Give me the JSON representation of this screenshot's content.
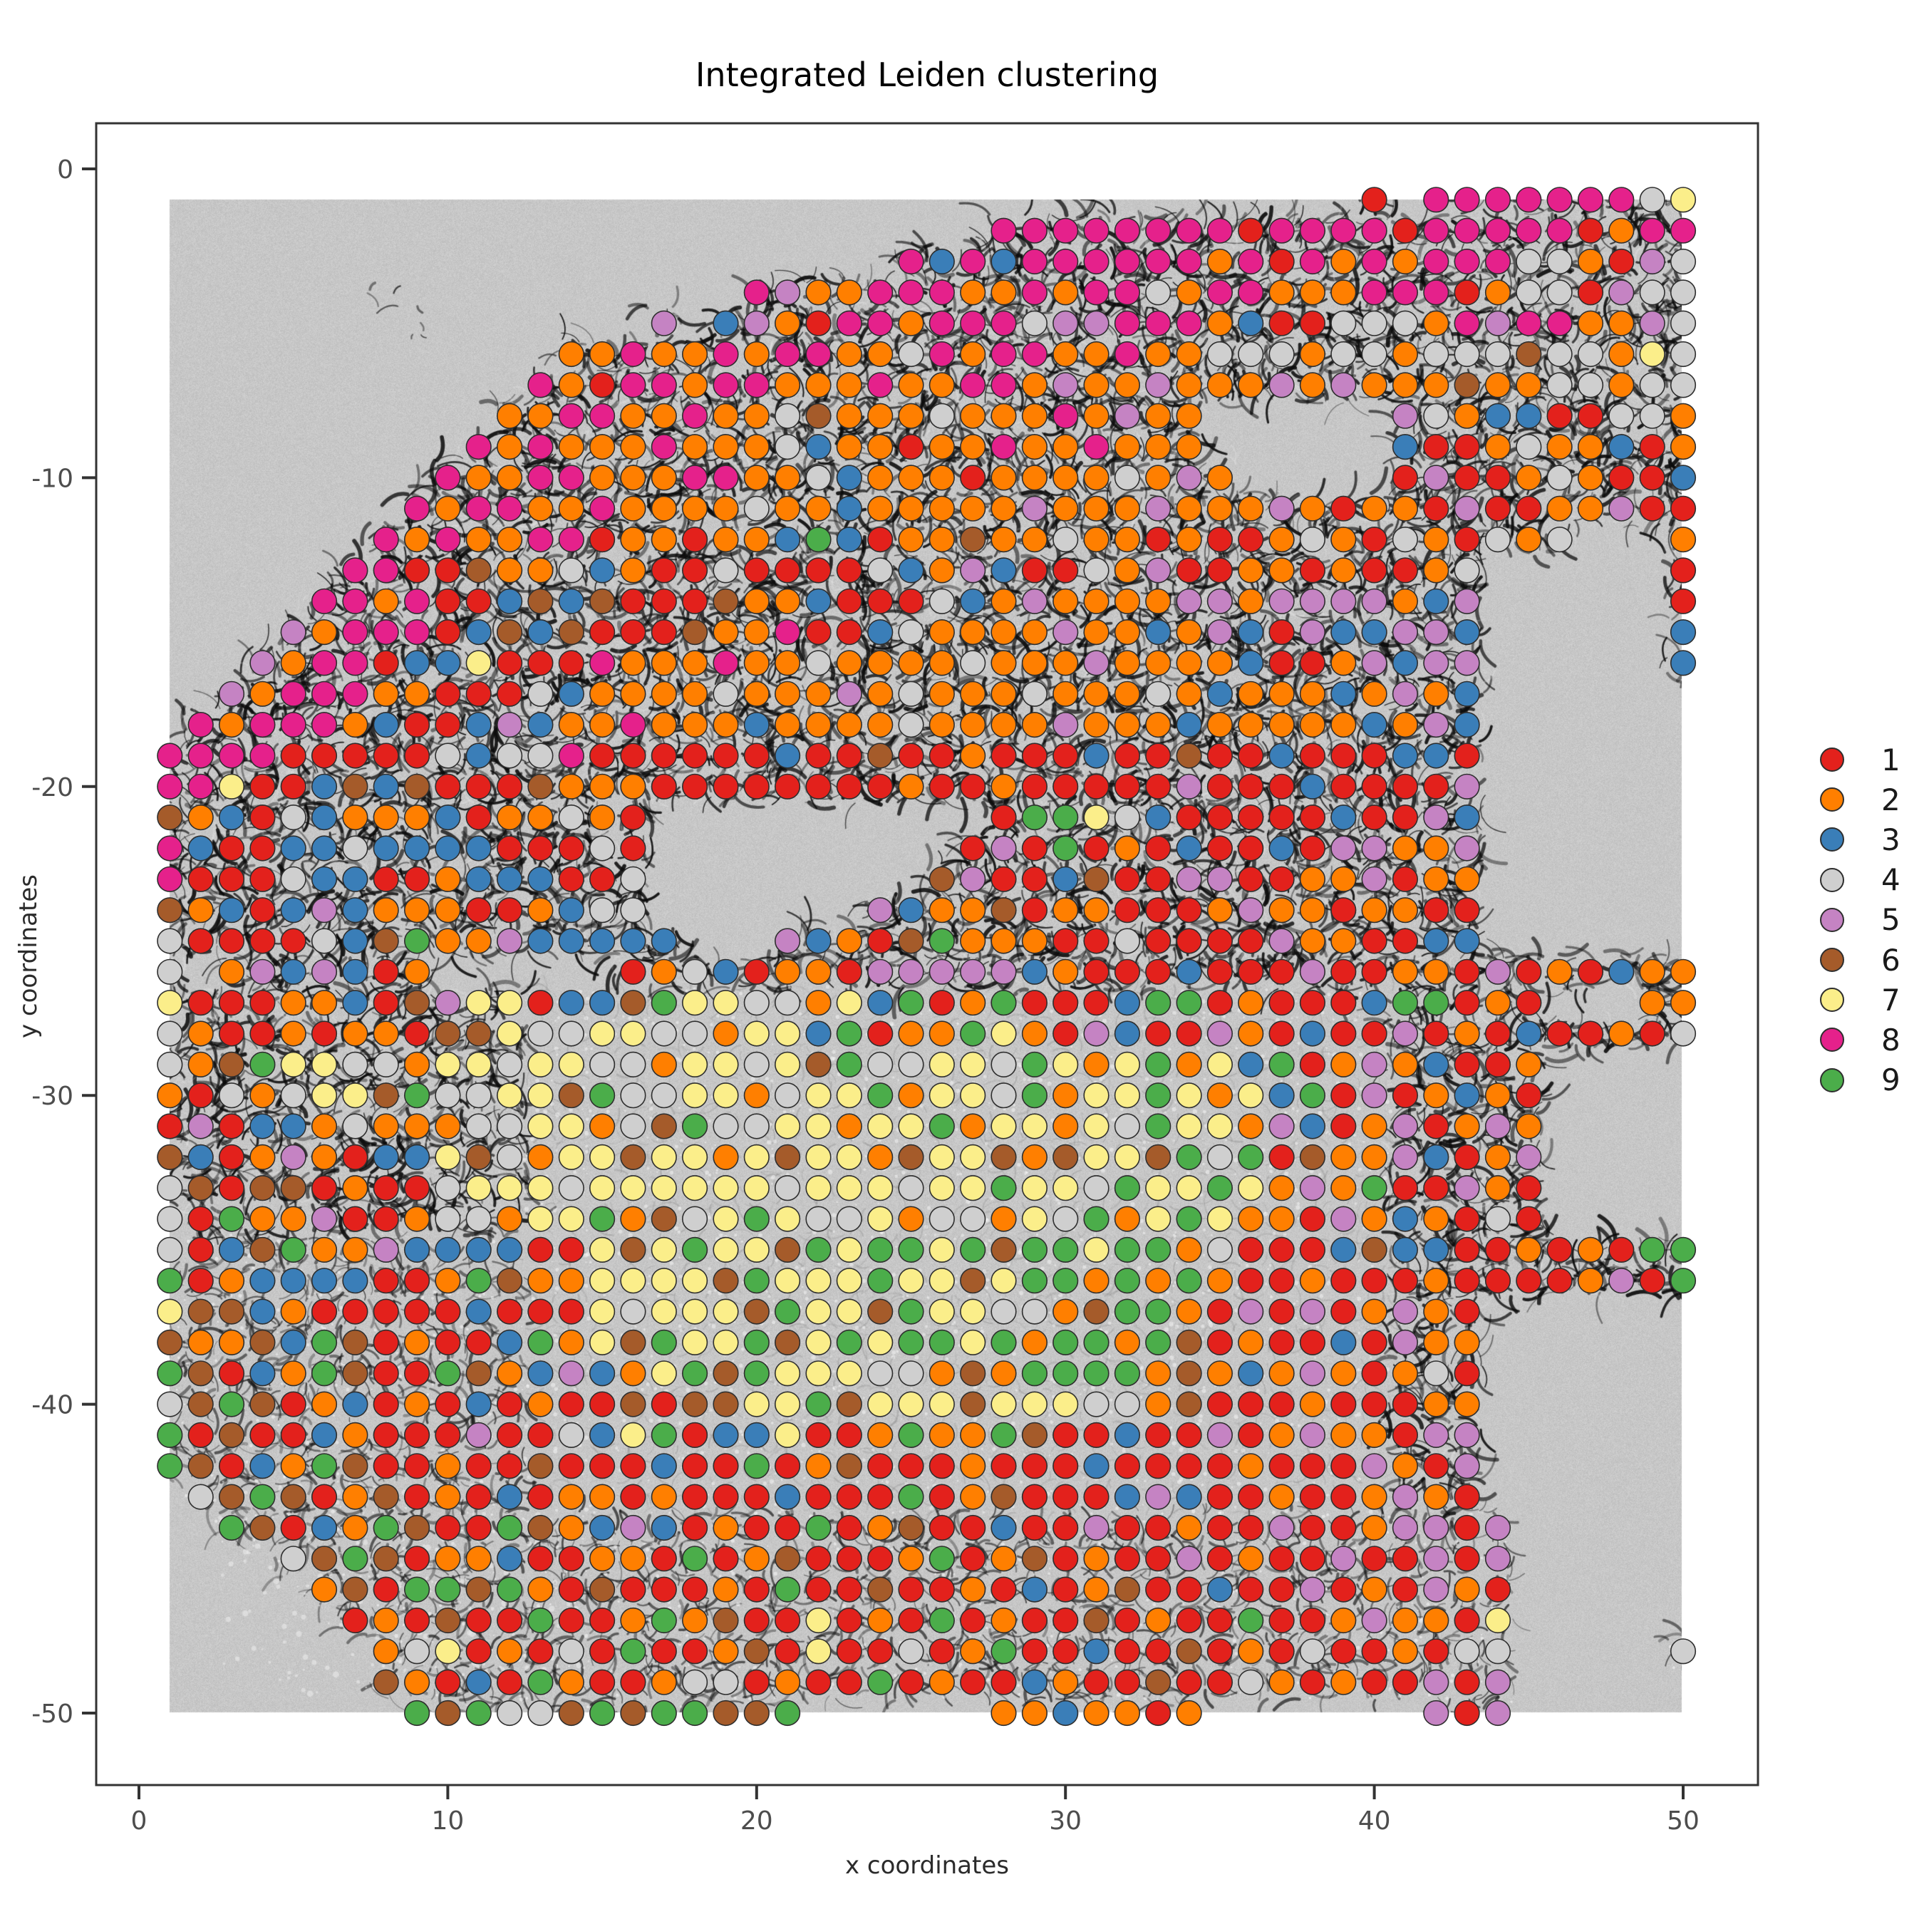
{
  "title": "Integrated Leiden clustering",
  "axes": {
    "x_label": "x coordinates",
    "y_label": "y coordinates",
    "x_ticks": [
      0,
      10,
      20,
      30,
      40,
      50
    ],
    "y_ticks": [
      0,
      -10,
      -20,
      -30,
      -40,
      -50
    ],
    "x_range": [
      -1.4,
      52.4
    ],
    "y_range": [
      -52.3,
      1.5
    ]
  },
  "legend": {
    "items": [
      {
        "label": "1",
        "color": "#E3211C"
      },
      {
        "label": "2",
        "color": "#FF7F00"
      },
      {
        "label": "3",
        "color": "#3A7EB8"
      },
      {
        "label": "4",
        "color": "#CFCFCF"
      },
      {
        "label": "5",
        "color": "#C583C3"
      },
      {
        "label": "6",
        "color": "#A55B2A"
      },
      {
        "label": "7",
        "color": "#FBEE8A"
      },
      {
        "label": "8",
        "color": "#E5218B"
      },
      {
        "label": "9",
        "color": "#4BAD4A"
      }
    ]
  },
  "chart_data": {
    "type": "scatter",
    "title": "Integrated Leiden clustering",
    "xlabel": "x coordinates",
    "ylabel": "y coordinates",
    "grid": false,
    "legend_position": "right",
    "background": "grayscale tissue microscopy image spanning x 1-50, y -1 to -50; dark fibrous web in upper half and margins, pale fine-textured core in center, smooth empty gray in upper-left, lower-left and right regions",
    "point_radius_px": 17.3,
    "point_stroke": "#2e2e2e",
    "clusters": [
      "1",
      "2",
      "3",
      "4",
      "5",
      "6",
      "7",
      "8",
      "9"
    ],
    "palette": {
      "1": "#E3211C",
      "2": "#FF7F00",
      "3": "#3A7EB8",
      "4": "#CFCFCF",
      "5": "#C583C3",
      "6": "#A55B2A",
      "7": "#FBEE8A",
      "8": "#E5218B",
      "9": "#4BAD4A"
    },
    "rows": [
      {
        "y": -1,
        "runs": "40:1,42-48:8,49:4,50:7"
      },
      {
        "y": -2,
        "runs": "28-35:8,36:1,37-40:8,41:1,42-46:8,47:1,48:2,49-50:8"
      },
      {
        "y": -3,
        "runs": "25:8,26:3,27:8,28:3,29-34:8,35:2,36:8,37:1,38:8,39:2,40:8,41:2,42-44:8,45-46:4,47:2,48:1,49:5,50:4"
      },
      {
        "y": -4,
        "runs": "20:8,21:5,22-23:2,24-26:8,27-28:2,29:8,30:2,31-32:8,33:4,34:2,35-36:8,37-39:2,40-42:8,43:1,44:2,45-46:4,47:1,48:5,49-50:4"
      },
      {
        "y": -5,
        "runs": "17:5,19:3,20:5,21:2,22:1,23-24:8,25:2,26-28:8,29:4,30-31:5,32-34:8,35:2,36:3,37-38:1,39-41:4,42:2,43:8,44:5,45-46:8,47-48:2,49:5,50:4"
      },
      {
        "y": -6,
        "runs": "14-15:2,16:8,17-18:2,19:8,20:2,21-22:8,23-24:2,25:4,26:8,27:2,28-29:8,30-31:2,32:8,33-34:2,35-37:4,38:2,39-40:4,41:2,42-44:4,45:6,46-47:4,48:2,49:7,50:4"
      },
      {
        "y": -7,
        "runs": "13:8,14:2,15:1,16-17:8,18:2,19-20:8,21-23:2,24:8,25-26:2,27-28:8,29:2,30:5,31-32:2,33:5,34-36:2,37:5,38:2,39:5,40-42:2,43:6,44-45:2,46-47:4,48:2,49-50:4"
      },
      {
        "y": -8,
        "runs": "12-13:2,14-15:8,16-17:2,18:8,19-20:2,21:4,22:6,23-25:2,26:4,27-29:2,30:8,31:2,32:5,33-34:2,41:5,42:4,43:2,44-45:3,46-47:1,48-49:4,50:2"
      },
      {
        "y": -9,
        "runs": "11:8,12:2,13:8,14-16:2,17:8,18-20:2,21:4,22:3,23-24:2,25:1,26-27:2,28:8,29-30:2,31:8,32-34:2,41:3,42-43:1,44:2,45:4,46-47:2,48:3,49:1,50:2"
      },
      {
        "y": -10,
        "runs": "10:8,11-12:2,13-14:8,15-17:2,18-19:8,20-21:2,22:4,23:3,24-26:2,27:1,28-31:2,32:4,33:2,34:5,35:2,41:1,42:5,43-44:1,45:2,46:4,47:2,48-49:1,50:3"
      },
      {
        "y": -11,
        "runs": "9:8,10:2,11-12:8,13-14:2,15:8,16-19:2,20:4,21-22:2,23:3,24-28:2,29:5,30-32:2,33:5,34-36:2,37:5,38:2,39:1,40-41:2,42:1,43:5,44-45:1,46-47:2,48:5,49-50:1"
      },
      {
        "y": -12,
        "runs": "8:8,9:2,10:8,11-12:2,13-14:8,15:1,16-17:2,18:1,19-20:2,21:3,22:9,23:3,24:1,25-26:2,27:6,28-29:2,30:4,31-32:2,33:1,34:2,35-36:1,37:2,38:4,39:2,40:1,41:4,42:2,43:1,44:4,45:2,46:4,50:2"
      },
      {
        "y": -13,
        "runs": "7-8:8,9-10:1,11:6,12-13:2,14:4,15:3,16:2,17-18:1,19:4,20-23:1,24:4,25:3,26:2,27:5,28:3,29-30:1,31:4,32:2,33:5,34-35:1,36-37:2,38:1,39:2,40-41:1,42:2,43:4,50:1"
      },
      {
        "y": -14,
        "runs": "6-7:8,8:2,9:8,10-11:1,12:3,13:6,14:3,15:6,16-18:1,19:6,20-21:2,22:3,23-25:1,26:4,27:3,28:2,29:5,30-33:2,34-35:5,36:2,37-40:5,41:2,42:3,43:5,50:1"
      },
      {
        "y": -15,
        "runs": "5:5,6:2,7-9:8,10:1,11:3,12:6,13:3,14:6,15-17:1,18:6,19-20:2,21:8,22-23:1,24:3,25:4,26-29:2,30:5,31-32:2,33:3,34:2,35:5,36:3,37:1,38:5,39-40:3,41-42:5,43:3,50:3"
      },
      {
        "y": -16,
        "runs": "4:5,5:2,6-7:8,8:1,9-10:3,11:7,12-14:1,15:8,16-18:2,19:8,20-21:2,22:4,23-26:2,27:4,28-30:2,31:5,32-33:2,34-35:2,36:3,37-38:1,39:2,40:5,41:3,42-43:5,50:3"
      },
      {
        "y": -17,
        "runs": "3:5,4:2,5-7:8,8-9:2,10-12:1,13:4,14:3,15-18:2,19:4,20-22:2,23:5,24:2,25:4,26:2,27-28:2,29:4,30-32:2,33:4,34:2,35:3,36-38:2,39:3,40:2,41:5,42:2,43:3"
      },
      {
        "y": -18,
        "runs": "2:8,3:2,4-6:8,7:2,8:3,9-10:1,11:3,12:5,13:3,14-15:2,16:8,17-19:2,20:3,21-24:2,25:4,26-28:2,29:2,30:5,31-33:2,34:3,35-39:2,40:3,41:2,42:5,43:3"
      },
      {
        "y": -19,
        "runs": "1-4:8,5-9:1,10:4,11:3,12-13:4,14:8,15-20:1,21:3,22-23:1,24:6,25-26:1,27:2,28-30:1,31:3,32-33:1,34:6,35-36:1,37:3,38-40:1,41-42:3,43:1"
      },
      {
        "y": -20,
        "runs": "1-2:8,3:7,4-5:1,6:3,7:6,8:3,9:6,10-12:1,13:6,14-16:2,17-24:1,25:2,26-27:1,28:2,29-33:1,34:5,35-37:1,38:3,39-41:1,42:1,43:5"
      },
      {
        "y": -21,
        "runs": "1:6,2:2,3:3,4:1,5:4,6:3,7-9:2,10:3,11:1,12-13:2,14:4,15:2,16:1,28:1,29-30:9,31:7,32:4,33:3,34-38:1,39:3,40-41:1,42:5,43:3"
      },
      {
        "y": -22,
        "runs": "1:8,2:3,3-4:1,5-6:3,7:4,8-11:3,12-14:1,15:4,16:1,27:1,28:5,29:1,30:9,31:1,32:2,33:1,34:3,35-36:1,37:3,38:1,39-40:5,41-42:2,43:5"
      },
      {
        "y": -23,
        "runs": "1:8,2-4:1,5:4,6-7:3,8-9:1,10:2,11-13:3,14-15:1,16:4,26:6,27:5,28-29:1,30:3,31:6,32-33:1,34-35:5,36-37:1,38-39:2,40:5,41:1,42-43:2"
      },
      {
        "y": -24,
        "runs": "1:6,2:2,3:3,4:1,5:3,6:5,7:3,8-10:2,11-12:1,13:2,14:3,15-16:4,24:5,25:3,26-27:2,28:6,29:1,30-31:2,32-33:1,34:1,35:2,36:5,37-38:2,39:1,40-41:2,42-43:1"
      },
      {
        "y": -25,
        "runs": "1:4,2-5:1,6:4,7:3,8:6,9:9,10-11:2,12:5,13-17:3,21:5,22:3,23:2,24:1,25:6,26:9,27-29:2,30-31:1,32:4,33-36:1,37:5,38-39:2,40-41:1,42-43:3"
      },
      {
        "y": -26,
        "runs": "1:4,3:2,4:5,5:3,6:5,7:3,8:1,9:2,16:1,17:2,18:4,19:3,20:1,21-22:2,23:1,24-28:5,29:3,30:2,31-33:1,34:3,35-37:1,38:5,39-40:1,41-42:2,43:1,44:5,45:1,46:2,47:1,48:3,49-50:2"
      },
      {
        "y": -27,
        "runs": "1:7,2-4:1,5-6:2,7:3,8:1,9:6,10:5,11-12:7,13:1,14-15:3,16:6,17:9,18-19:7,20-21:4,22:2,23:7,24:3,25:9,26:1,27:2,28:9,29-31:1,32:3,33-34:9,35:1,36:2,37-39:1,40:3,41-42:9,43:1,44:2,45:1,49-50:2"
      },
      {
        "y": -28,
        "runs": "1:4,2:2,3-4:1,5:2,6:1,7-8:2,9:1,10-11:6,12:7,13-14:4,15-16:7,17-18:4,19:2,20-21:7,22:3,23:9,24:1,25-26:2,27:9,28:7,29:2,30:1,31:5,32:3,33-34:1,35:5,36:2,37:1,38:3,39-40:1,41:5,42:1,43:2,44:1,45:3,46-47:1,48:2,49:1,50:4"
      },
      {
        "y": -29,
        "runs": "1:4,2:2,3:6,4:9,5-6:7,7-8:4,9:2,10-11:7,12:4,13-14:7,15-16:4,17:2,18-19:7,20:4,21:7,22:6,23:9,24-25:4,26-27:7,28:4,29:9,30:7,31:2,32:7,33:9,34:2,35:7,36:3,37:9,38:1,39:2,40:5,41:2,42:3,43:1,44:1,45:2"
      },
      {
        "y": -30,
        "runs": "1:2,2:1,3:4,4:2,5:4,6-7:7,8:6,9:9,10-11:4,12-13:7,14:6,15:9,16-17:4,18-19:7,20:2,21:4,22-23:7,24:9,25:2,26-27:7,28:4,29:9,30:2,31-32:7,33:9,34:7,35:2,36:7,37:3,38:9,39:1,40:5,41:1,42:2,43:3,44:2,45:1"
      },
      {
        "y": -31,
        "runs": "1:1,2:5,3:1,4:3,5:3,6:2,7:4,8-10:2,11-12:4,13-14:7,15:2,16:4,17:6,18:9,19-20:4,21-22:7,23:2,24-25:7,26:9,27:2,28-29:7,30:2,31:7,32:4,33:9,34-35:7,36:2,37:5,38:3,39:1,40:2,41:5,42:1,43:2,44:5,45:2"
      },
      {
        "y": -32,
        "runs": "1:6,2:3,3:1,4:2,5:5,6:2,7:1,8-9:3,10:7,11:6,12:4,13:2,14-15:7,16:6,17-18:7,19:2,20:7,21:6,22-23:7,24:2,25:6,26-27:7,28:6,29:2,30:6,31-32:7,33:6,34:9,35:4,36:9,37:1,38:6,39-40:2,41:5,42:3,43:1,44:2,45:5"
      },
      {
        "y": -33,
        "runs": "1:4,2:6,3:1,4-5:6,6:1,7:2,8-9:1,10:4,11-13:7,14:4,15-20:7,21:4,22-24:7,25:4,26-27:7,28:9,29-30:7,31:4,32:9,33-34:7,35:9,36:7,37:2,38:5,39:2,40:9,41-42:1,43:5,44:2,45:1"
      },
      {
        "y": -34,
        "runs": "1:4,2:1,3:9,4-5:2,6:5,7-8:1,9:2,10-11:4,12:2,13-14:7,15:9,16:2,17:6,18:4,19:7,20:9,21:7,22-23:4,24:7,25:2,26-27:4,28:2,29:7,30:4,31:9,32:2,33:7,34:9,35:7,36-37:2,38:1,39:5,40:2,41:3,42:2,43:1,44:4,45:1"
      },
      {
        "y": -35,
        "runs": "1:4,2:1,3:3,4:6,5:9,6-7:2,8:5,9-12:3,13-14:1,15:7,16:6,17:7,18:9,19-20:7,21:6,22:9,23:7,24-25:9,26:7,27:9,28:6,29-30:9,31:7,32-33:9,34:2,35:4,36-38:1,39:3,40:6,41-42:3,43:1,44:1,45:2,46:1,47:2,48:1,49-50:9"
      },
      {
        "y": -36,
        "runs": "1:9,2:1,3:2,4-7:3,8-9:1,10:2,11:9,12:6,13-14:2,15-18:7,19:6,20:9,21-23:7,24:9,25-26:7,27:6,28:7,29-30:9,31:2,32:9,33:2,34:9,35:2,36-37:1,38:2,39-41:1,42:2,43-46:1,47:2,48:5,49:1,50:9"
      },
      {
        "y": -37,
        "runs": "1:7,2-3:6,4:3,5:2,6-10:1,11:3,12-14:1,15:7,16:4,17-19:7,20:6,21:9,22-23:7,24:6,25:9,26-27:7,28-29:4,30:2,31:6,32-33:9,34:2,35:1,36:5,37:1,38:5,39:1,40:2,41:5,42:2,43:1"
      },
      {
        "y": -38,
        "runs": "1:6,2-3:2,4:6,5:3,6:9,7:6,8:1,9:2,10-11:1,12:3,13:9,14:2,15:7,16:6,17:9,18-19:7,20:9,21:6,22:7,23:9,24:7,25-26:9,27:7,28:9,29:2,30-31:9,32:2,33:9,34:6,35:1,36:2,37-38:1,39:3,40:1,41:5,42-43:2"
      },
      {
        "y": -39,
        "runs": "1:9,2:6,3:1,4:3,5:2,6:9,7:6,8-9:1,10:9,11:6,12:2,13:3,14:5,15:3,16:2,17:7,18:9,19:6,20:9,21-23:7,24-25:4,26:2,27:6,28:2,29-32:9,33:2,34:6,35:2,36:3,37:2,38:5,39:2,40:1,41:2,42:4,43:1"
      },
      {
        "y": -40,
        "runs": "1:4,2:6,3:9,4:6,5:1,6:2,7:3,8:1,9:2,10:1,11:3,12:1,13:2,14-15:1,16:6,17:1,18-19:6,20-21:7,22:9,23:6,24-26:7,27:6,28-30:7,31-32:4,33:2,34:6,35-37:1,38:2,39-41:1,42-43:2"
      },
      {
        "y": -41,
        "runs": "1:9,2:1,3:6,4-5:1,6:3,7:2,8-10:1,11:5,12-13:1,14:4,15:3,16:7,17:9,18:1,19-20:3,21:7,22-23:1,24:2,25:9,26-27:2,28:9,29:6,30-31:1,32:3,33-34:1,35:5,36:1,37:2,38:5,39-40:2,41:1,42-43:5"
      },
      {
        "y": -42,
        "runs": "1:9,2:6,3:1,4:3,5:2,6:9,7:6,8-9:1,10:2,11-12:1,13:6,14-16:1,17:3,18-19:1,20:9,21:1,22:2,23:6,24-26:1,27:2,28-30:1,31:3,32-35:1,36:2,37-39:1,40:5,41:2,42:1,43:5"
      },
      {
        "y": -43,
        "runs": "2:4,3:6,4:9,5:6,6:1,7:2,8:6,9:1,10:2,11:1,12:3,13:1,14-15:2,16:1,17:2,18-20:1,21:3,22-24:1,25:9,26:1,27:2,28:6,29-31:1,32:3,33:5,34:3,35-36:1,37:2,38-39:1,40:2,41:5,42:2,43:1"
      },
      {
        "y": -44,
        "runs": "3:9,4:6,5:1,6:3,7:2,8:9,9:6,10-11:1,12:9,13:6,14:2,15:3,16:5,17:3,18:1,19:2,20-21:1,22:9,23:1,24:2,25:6,26-27:1,28:3,29-30:1,31:5,32-33:1,34:2,35-36:1,37:5,38-39:1,40:2,41-42:5,43:1,44:5"
      },
      {
        "y": -45,
        "runs": "5:4,6:6,7:9,8:6,9:1,10-11:2,12:3,13-14:1,15-16:2,17:1,18:9,19:1,20:2,21:6,22-24:1,25:2,26:9,27:1,28:2,29:6,30:1,31:2,32-33:1,34:5,35:1,36:2,37-38:1,39:5,40-41:1,42:5,43:1,44:5"
      },
      {
        "y": -46,
        "runs": "6:2,7:6,8:1,9-10:9,11:6,12:9,13:2,14:1,15:6,16-18:1,19:2,20:1,21:9,22-23:1,24:6,25-26:1,27:2,28:1,29:3,30:1,31:2,32:6,33-34:1,35:3,36-37:1,38:5,39:1,40:2,41:1,42:5,43:2,44:1"
      },
      {
        "y": -47,
        "runs": "7:1,8:2,9:1,10:6,11-12:1,13:9,14-15:1,16:2,17:9,18:2,19:6,20-21:1,22:7,23:1,24:2,25:1,26:9,27:1,28:2,29-30:1,31:6,32:1,33:2,34-35:1,36:9,37-38:1,39:2,40:5,41-42:2,43:1,44:7"
      },
      {
        "y": -48,
        "runs": "8:2,9:4,10:7,11:1,12:2,13:1,14:4,15:1,16:9,17-18:1,19:2,20:6,21:1,22:7,23-24:1,25:4,26:1,27:2,28:9,29-30:1,31:3,32-33:1,34:6,35:1,36:2,37:1,38:4,39-40:1,41:2,42:1,43-44:4,50:4"
      },
      {
        "y": -49,
        "runs": "8:6,9:2,10:1,11:3,12:1,13:9,14:2,15-16:1,17:2,18-19:4,20:1,21:2,22-23:1,24:9,25:1,26:2,27-28:1,29:3,30:2,31-32:1,33:6,34-35:1,36:4,37:2,38:1,39:2,40-41:1,42:5,43:1,44:5"
      },
      {
        "y": -50,
        "runs": "9:9,10:6,11:9,12-13:4,14:6,15:9,16:6,17-18:9,19-20:6,21:9,28-29:2,30:3,31-32:2,33:1,34:2,42:5,43:1,44:5"
      }
    ]
  }
}
